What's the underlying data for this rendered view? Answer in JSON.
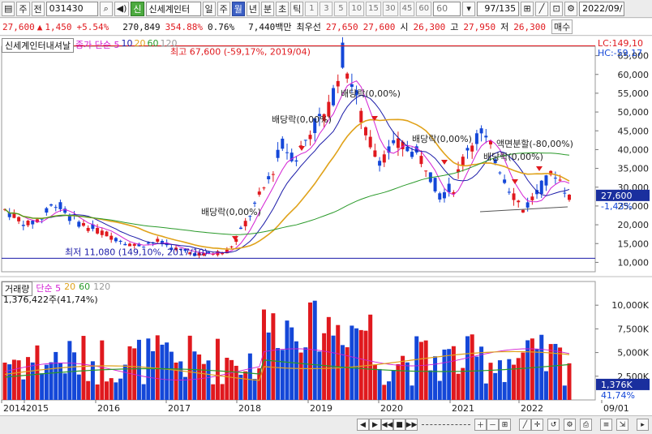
{
  "toolbar": {
    "market_label": "주",
    "prev_label": "전",
    "stock_code": "031430",
    "badge_new": "신",
    "stock_name": "신세계인터",
    "periods": [
      "일",
      "주",
      "월",
      "년",
      "분",
      "초",
      "틱"
    ],
    "period_active": "월",
    "numbers": [
      "1",
      "3",
      "5",
      "10",
      "15",
      "30",
      "45",
      "60"
    ],
    "count_input": "60",
    "page_count": "97/135",
    "date": "2022/09/"
  },
  "info": {
    "price": "27,600",
    "arrow": "▲",
    "change": "1,450",
    "change_pct": "+5.54%",
    "volume": "270,849",
    "vol_ratio": "354.88%",
    "turnover": "0.76%",
    "amount": "7,440백만",
    "best_ask_label": "최우선",
    "best_ask": "27,650",
    "best_bid": "27,600",
    "open_label": "시",
    "open": "26,300",
    "high_label": "고",
    "high": "27,950",
    "low_label": "저",
    "low": "26,300",
    "order_label": "매수"
  },
  "legend": {
    "price_name": "신세계인터내셔날",
    "price_ma": "종가 단순 5",
    "ma_10": "10",
    "ma_20": "20",
    "ma_60": "60",
    "ma_120": "120",
    "vol_name": "거래량",
    "vol_ma": "단순 5",
    "vol_ma_20": "20",
    "vol_ma_60": "60",
    "vol_ma_120": "120",
    "vol_current": "1,376,422주(41,74%)"
  },
  "colors": {
    "up": "#e0191e",
    "down": "#1447d8",
    "ma5": "#d31fd3",
    "ma10": "#1a1aa8",
    "ma20": "#e0a21a",
    "ma60": "#2a9a2a",
    "ma120": "#999999"
  },
  "annotations": {
    "high": "최고 67,600 (-59,17%, 2019/04)",
    "low": "최저 11,080 (149,10%, 2017/10)",
    "div1": "배당락(0,00%)",
    "div2": "배당락(0,00%)",
    "div3": "배당락(0,00%)",
    "div4": "배당락(0,00%)",
    "div5": "배당락(0,00%)",
    "split": "액면분할(-80,00%)",
    "lc": "LC:149,10",
    "hc": "HC:-59,17",
    "last_price": "27,600",
    "last_pct": "-1,43%",
    "last_vol": "1,376K",
    "last_vol_pct": "41,74%"
  },
  "chart_data": [
    {
      "type": "candlestick",
      "title": "신세계인터내셔날",
      "x_labels": [
        "2014",
        "2015",
        "2016",
        "2017",
        "2018",
        "2019",
        "2020",
        "2021",
        "2022",
        "09/01"
      ],
      "ylim": [
        7500,
        67500
      ],
      "y_ticks": [
        "10,000",
        "15,000",
        "20,000",
        "25,000",
        "30,000",
        "35,000",
        "40,000",
        "45,000",
        "50,000",
        "55,000",
        "60,000",
        "65,000"
      ],
      "close_start": 24000,
      "close_last": 27600,
      "max": 67600,
      "min": 11080
    },
    {
      "type": "bar",
      "title": "거래량",
      "y_ticks": [
        "2,500K",
        "5,000K",
        "7,500K",
        "10,000K"
      ],
      "ylim": [
        0,
        12500
      ],
      "last_value_k": 1376
    }
  ],
  "scrollbar": {
    "left_btns": [
      "◀",
      "▶",
      "◀◀",
      "■",
      "▶▶"
    ]
  }
}
